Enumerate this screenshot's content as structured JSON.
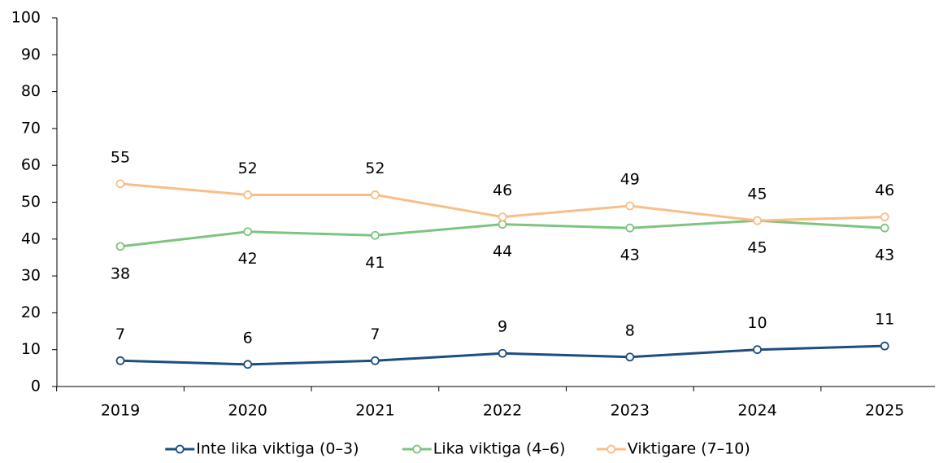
{
  "chart_data": {
    "type": "line",
    "categories": [
      "2019",
      "2020",
      "2021",
      "2022",
      "2023",
      "2024",
      "2025"
    ],
    "series": [
      {
        "name": "Inte lika viktiga (0–3)",
        "color": "#1d4e7e",
        "values": [
          7,
          6,
          7,
          9,
          8,
          10,
          11
        ]
      },
      {
        "name": "Lika viktiga (4–6)",
        "color": "#7dc47f",
        "values": [
          38,
          42,
          41,
          44,
          43,
          45,
          43
        ]
      },
      {
        "name": "Viktigare (7–10)",
        "color": "#f9be88",
        "values": [
          55,
          52,
          52,
          46,
          49,
          45,
          46
        ]
      }
    ],
    "ylim": [
      0,
      100
    ],
    "yticks": [
      0,
      10,
      20,
      30,
      40,
      50,
      60,
      70,
      80,
      90,
      100
    ],
    "legend": "bottom"
  }
}
